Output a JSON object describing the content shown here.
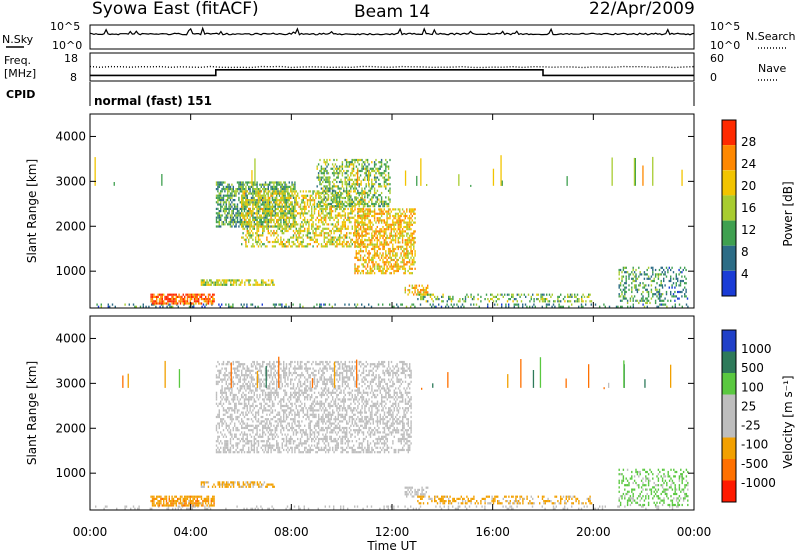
{
  "header": {
    "station": "Syowa East (fitACF)",
    "beam": "Beam 14",
    "date": "22/Apr/2009"
  },
  "noise_panel": {
    "left_label": "N.Sky",
    "left_ticks": [
      "10^5",
      "10^0"
    ],
    "right_label": "N.Search",
    "right_ticks": [
      "10^5",
      "10^0"
    ]
  },
  "freq_panel": {
    "left_label_1": "Freq.",
    "left_label_2": "[MHz]",
    "left_ticks": [
      "18",
      "8"
    ],
    "right_label": "Nave",
    "right_ticks": [
      "60",
      "0"
    ]
  },
  "cpid": {
    "label": "CPID",
    "mode": "normal (fast) 151"
  },
  "power_panel": {
    "ylabel": "Slant Range [km]",
    "yticks": [
      "4000",
      "3000",
      "2000",
      "1000"
    ],
    "colorbar_label": "Power [dB]",
    "colorbar_ticks": [
      "28",
      "24",
      "20",
      "16",
      "12",
      "8",
      "4"
    ]
  },
  "velocity_panel": {
    "ylabel": "Slant Range [km]",
    "yticks": [
      "4000",
      "3000",
      "2000",
      "1000"
    ],
    "colorbar_label": "Velocity [m s⁻¹]",
    "colorbar_ticks": [
      "1000",
      "500",
      "100",
      "25",
      "-25",
      "-100",
      "-500",
      "-1000"
    ]
  },
  "xaxis": {
    "label": "Time UT",
    "ticks": [
      "00:00",
      "04:00",
      "08:00",
      "12:00",
      "16:00",
      "20:00",
      "00:00"
    ]
  },
  "chart_data": [
    {
      "type": "line",
      "name": "noise",
      "x_range_hours": [
        0,
        24
      ],
      "y_scale": "log",
      "ylim": [
        1,
        100000
      ]
    },
    {
      "type": "line",
      "name": "frequency_nave",
      "x_hours": [
        0,
        5,
        5,
        18,
        18,
        24
      ],
      "freq_mhz": [
        10,
        10,
        12,
        12,
        10,
        10
      ],
      "ylim_freq": [
        8,
        18
      ],
      "ylim_nave": [
        0,
        60
      ]
    },
    {
      "type": "heatmap",
      "name": "power",
      "xlim_hours": [
        0,
        24
      ],
      "ylim_km": [
        180,
        4500
      ],
      "units": "dB",
      "colorscale": [
        {
          "v": 4,
          "color": "#1a3cd6"
        },
        {
          "v": 8,
          "color": "#2c6c86"
        },
        {
          "v": 12,
          "color": "#3fa050"
        },
        {
          "v": 16,
          "color": "#a8cc30"
        },
        {
          "v": 20,
          "color": "#f2c400"
        },
        {
          "v": 24,
          "color": "#ff8800"
        },
        {
          "v": 28,
          "color": "#ff2a00"
        }
      ],
      "regions": [
        {
          "t": [
            0.2,
            23.8
          ],
          "r": [
            180,
            280
          ],
          "v": 10,
          "density": 0.25
        },
        {
          "t": [
            2.4,
            5.0
          ],
          "r": [
            250,
            500
          ],
          "v": 26,
          "density": 0.75
        },
        {
          "t": [
            4.4,
            7.4
          ],
          "r": [
            650,
            820
          ],
          "v": 17,
          "density": 0.65
        },
        {
          "t": [
            5.0,
            8.2
          ],
          "r": [
            1950,
            3000
          ],
          "v": 12,
          "density": 0.6
        },
        {
          "t": [
            6.0,
            11.0
          ],
          "r": [
            1500,
            2800
          ],
          "v": 18,
          "density": 0.5
        },
        {
          "t": [
            9.0,
            12.0
          ],
          "r": [
            2400,
            3500
          ],
          "v": 14,
          "density": 0.45
        },
        {
          "t": [
            10.5,
            13.0
          ],
          "r": [
            900,
            2400
          ],
          "v": 21,
          "density": 0.55
        },
        {
          "t": [
            12.5,
            13.5
          ],
          "r": [
            450,
            700
          ],
          "v": 21,
          "density": 0.6
        },
        {
          "t": [
            13.0,
            20.0
          ],
          "r": [
            300,
            500
          ],
          "v": 14,
          "density": 0.35
        },
        {
          "t": [
            21.0,
            22.8
          ],
          "r": [
            250,
            1100
          ],
          "v": 12,
          "density": 0.35
        },
        {
          "t": [
            22.6,
            23.8
          ],
          "r": [
            300,
            1100
          ],
          "v": 9,
          "density": 0.25
        }
      ]
    },
    {
      "type": "heatmap",
      "name": "velocity",
      "xlim_hours": [
        0,
        24
      ],
      "ylim_km": [
        180,
        4500
      ],
      "units": "m s-1",
      "colorscale": [
        {
          "v": 1000,
          "color": "#2040c8"
        },
        {
          "v": 500,
          "color": "#2e7a5a"
        },
        {
          "v": 100,
          "color": "#5ac840"
        },
        {
          "v": 25,
          "color": "#bebebe"
        },
        {
          "v": -25,
          "color": "#bebebe"
        },
        {
          "v": -100,
          "color": "#f2a000"
        },
        {
          "v": -500,
          "color": "#ff7000"
        },
        {
          "v": -1000,
          "color": "#ff1a00"
        }
      ],
      "regions": [
        {
          "t": [
            0.2,
            23.8
          ],
          "r": [
            180,
            280
          ],
          "v": 0,
          "density": 0.2
        },
        {
          "t": [
            2.4,
            5.0
          ],
          "r": [
            250,
            500
          ],
          "v": -200,
          "density": 0.75
        },
        {
          "t": [
            4.4,
            7.4
          ],
          "r": [
            650,
            820
          ],
          "v": -150,
          "density": 0.55
        },
        {
          "t": [
            5.0,
            12.8
          ],
          "r": [
            1400,
            3500
          ],
          "v": 0,
          "density": 0.45
        },
        {
          "t": [
            12.5,
            13.5
          ],
          "r": [
            450,
            700
          ],
          "v": 0,
          "density": 0.5
        },
        {
          "t": [
            13.0,
            20.0
          ],
          "r": [
            300,
            500
          ],
          "v": -150,
          "density": 0.4
        },
        {
          "t": [
            21.0,
            23.8
          ],
          "r": [
            250,
            1100
          ],
          "v": 150,
          "density": 0.3
        }
      ]
    }
  ]
}
